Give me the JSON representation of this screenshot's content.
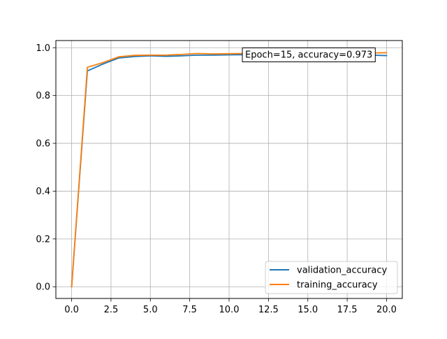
{
  "chart_data": {
    "type": "line",
    "x": [
      0,
      1,
      2,
      3,
      4,
      5,
      6,
      7,
      8,
      9,
      10,
      11,
      12,
      13,
      14,
      15,
      16,
      17,
      18,
      19,
      20
    ],
    "series": [
      {
        "name": "validation_accuracy",
        "color": "#1f77b4",
        "values": [
          0.0,
          0.903,
          0.932,
          0.957,
          0.963,
          0.966,
          0.964,
          0.966,
          0.969,
          0.969,
          0.97,
          0.971,
          0.97,
          0.972,
          0.971,
          0.973,
          0.97,
          0.971,
          0.97,
          0.969,
          0.967
        ]
      },
      {
        "name": "training_accuracy",
        "color": "#ff7f0e",
        "values": [
          0.0,
          0.918,
          0.938,
          0.962,
          0.968,
          0.969,
          0.969,
          0.972,
          0.976,
          0.974,
          0.975,
          0.976,
          0.976,
          0.977,
          0.977,
          0.978,
          0.977,
          0.978,
          0.978,
          0.978,
          0.979
        ]
      }
    ],
    "title": "",
    "xlabel": "",
    "ylabel": "",
    "xlim": [
      -1.0,
      21.0
    ],
    "ylim": [
      -0.049,
      1.03
    ],
    "xticks": [
      0.0,
      2.5,
      5.0,
      7.5,
      10.0,
      12.5,
      15.0,
      17.5,
      20.0
    ],
    "xtick_labels": [
      "0.0",
      "2.5",
      "5.0",
      "7.5",
      "10.0",
      "12.5",
      "15.0",
      "17.5",
      "20.0"
    ],
    "yticks": [
      0.0,
      0.2,
      0.4,
      0.6,
      0.8,
      1.0
    ],
    "ytick_labels": [
      "0.0",
      "0.2",
      "0.4",
      "0.6",
      "0.8",
      "1.0"
    ],
    "grid": true,
    "legend": "lower-right",
    "annotation": {
      "text": "Epoch=15, accuracy=0.973",
      "x": 15,
      "y": 0.973
    }
  }
}
